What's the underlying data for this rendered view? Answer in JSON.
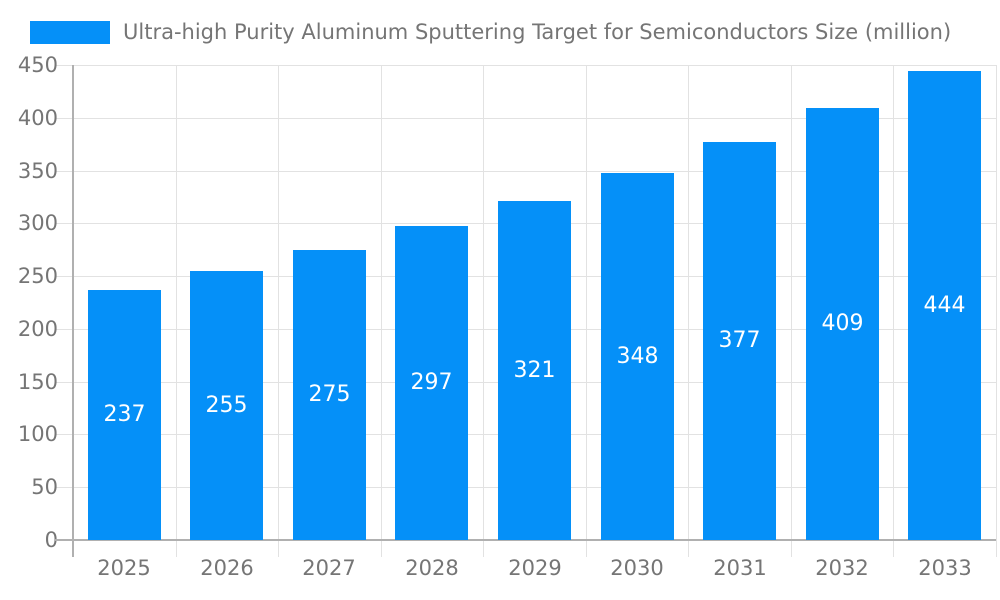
{
  "legend": {
    "swatch_color": "#0590f8",
    "label": "Ultra-high Purity Aluminum Sputtering Target for Semiconductors Size (million)"
  },
  "chart_data": {
    "type": "bar",
    "title": "Ultra-high Purity Aluminum Sputtering Target for Semiconductors Size (million)",
    "categories": [
      "2025",
      "2026",
      "2027",
      "2028",
      "2029",
      "2030",
      "2031",
      "2032",
      "2033"
    ],
    "values": [
      237,
      255,
      275,
      297,
      321,
      348,
      377,
      409,
      444
    ],
    "xlabel": "",
    "ylabel": "",
    "ylim": [
      0,
      450
    ],
    "ytick_step": 50,
    "ytick_labels": [
      "0",
      "50",
      "100",
      "150",
      "200",
      "250",
      "300",
      "350",
      "400",
      "450"
    ],
    "grid": true,
    "legend_position": "top-left",
    "value_labels": "inside-center",
    "colors": {
      "bar": "#0590f8",
      "value_label": "#ffffff",
      "tick_label": "#757575",
      "title": "#757575",
      "gridline": "#e2e2e2",
      "axis_line": "#b0b0b0",
      "background": "#ffffff"
    }
  }
}
